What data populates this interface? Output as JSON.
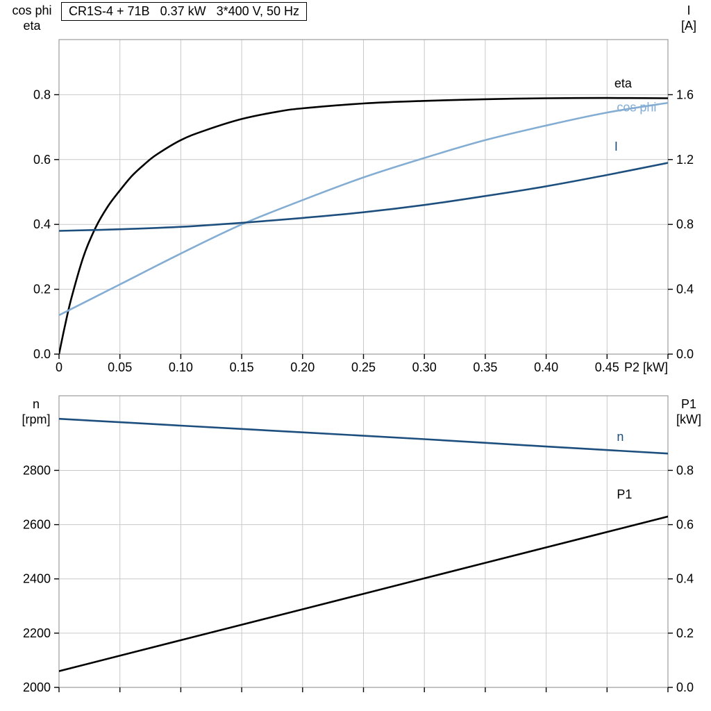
{
  "header": {
    "title": "CR1S-4 + 71B   0.37 kW   3*400 V, 50 Hz"
  },
  "colors": {
    "black": "#000000",
    "dark_blue": "#1d4f7e",
    "light_blue": "#84add3",
    "grid": "#c9c9c9",
    "frame": "#9b9b9b",
    "tick": "#000000",
    "text": "#000000"
  },
  "chart_data": [
    {
      "id": "top",
      "type": "line",
      "x_label": "P2 [kW]",
      "x_range": [
        0,
        0.5
      ],
      "x_tick_values": [
        0,
        0.05,
        0.1,
        0.15,
        0.2,
        0.25,
        0.3,
        0.35,
        0.4,
        0.45
      ],
      "x_tick_labels": [
        "0",
        "0.05",
        "0.10",
        "0.15",
        "0.20",
        "0.25",
        "0.30",
        "0.35",
        "0.40",
        "0.45"
      ],
      "y_left": {
        "title": [
          "cos phi",
          "eta"
        ],
        "range": [
          0,
          0.97
        ],
        "ticks": [
          0.0,
          0.2,
          0.4,
          0.6,
          0.8
        ],
        "tick_labels": [
          "0.0",
          "0.2",
          "0.4",
          "0.6",
          "0.8"
        ]
      },
      "y_right": {
        "title": [
          "I",
          "[A]"
        ],
        "range": [
          0,
          1.94
        ],
        "ticks": [
          0.0,
          0.4,
          0.8,
          1.2,
          1.6
        ],
        "tick_labels": [
          "0.0",
          "0.4",
          "0.8",
          "1.2",
          "1.6"
        ]
      },
      "series": [
        {
          "name": "eta",
          "axis": "left",
          "color": "black",
          "x": [
            0,
            0.005,
            0.01,
            0.02,
            0.03,
            0.04,
            0.05,
            0.06,
            0.07,
            0.08,
            0.1,
            0.12,
            0.15,
            0.18,
            0.2,
            0.25,
            0.3,
            0.35,
            0.4,
            0.45,
            0.5
          ],
          "y": [
            0,
            0.09,
            0.17,
            0.3,
            0.39,
            0.455,
            0.505,
            0.55,
            0.585,
            0.615,
            0.66,
            0.69,
            0.725,
            0.748,
            0.758,
            0.773,
            0.781,
            0.786,
            0.789,
            0.79,
            0.789
          ]
        },
        {
          "name": "cos phi",
          "axis": "left",
          "color": "light_blue",
          "x": [
            0,
            0.05,
            0.1,
            0.15,
            0.2,
            0.25,
            0.3,
            0.35,
            0.4,
            0.45,
            0.5
          ],
          "y": [
            0.12,
            0.215,
            0.31,
            0.4,
            0.475,
            0.545,
            0.605,
            0.66,
            0.705,
            0.745,
            0.775
          ]
        },
        {
          "name": "I",
          "axis": "right",
          "color": "dark_blue",
          "x": [
            0,
            0.05,
            0.1,
            0.15,
            0.2,
            0.25,
            0.3,
            0.35,
            0.4,
            0.45,
            0.5
          ],
          "y": [
            0.76,
            0.77,
            0.785,
            0.81,
            0.84,
            0.875,
            0.92,
            0.975,
            1.035,
            1.105,
            1.18
          ]
        }
      ],
      "annotations": [
        {
          "text": "eta",
          "x": 0.456,
          "y": 0.822,
          "axis": "left",
          "color": "black"
        },
        {
          "text": "cos phi",
          "x": 0.458,
          "y": 0.748,
          "axis": "left",
          "color": "light_blue"
        },
        {
          "text": "I",
          "x": 0.456,
          "y": 0.627,
          "axis": "left",
          "color": "dark_blue"
        }
      ]
    },
    {
      "id": "bottom",
      "type": "line",
      "x_label": "",
      "x_range": [
        0,
        0.5
      ],
      "x_tick_values": [
        0,
        0.05,
        0.1,
        0.15,
        0.2,
        0.25,
        0.3,
        0.35,
        0.4,
        0.45
      ],
      "x_tick_labels": [],
      "y_left": {
        "title": [
          "n",
          "[rpm]"
        ],
        "range": [
          2000,
          3075
        ],
        "ticks": [
          2000,
          2200,
          2400,
          2600,
          2800
        ],
        "tick_labels": [
          "2000",
          "2200",
          "2400",
          "2600",
          "2800"
        ]
      },
      "y_right": {
        "title": [
          "P1",
          "[kW]"
        ],
        "range": [
          0,
          1.075
        ],
        "ticks": [
          0.0,
          0.2,
          0.4,
          0.6,
          0.8
        ],
        "tick_labels": [
          "0.0",
          "0.2",
          "0.4",
          "0.6",
          "0.8"
        ]
      },
      "series": [
        {
          "name": "n",
          "axis": "left",
          "color": "dark_blue",
          "x": [
            0,
            0.1,
            0.2,
            0.3,
            0.4,
            0.5
          ],
          "y": [
            2990,
            2965,
            2940,
            2915,
            2888,
            2862
          ]
        },
        {
          "name": "P1",
          "axis": "right",
          "color": "black",
          "x": [
            0,
            0.1,
            0.2,
            0.3,
            0.4,
            0.5
          ],
          "y": [
            0.06,
            0.174,
            0.288,
            0.402,
            0.516,
            0.63
          ]
        }
      ],
      "annotations": [
        {
          "text": "n",
          "x": 0.458,
          "y": 2908,
          "axis": "left",
          "color": "dark_blue"
        },
        {
          "text": "P1",
          "x": 0.458,
          "y": 2696,
          "axis": "left",
          "color": "black"
        }
      ]
    }
  ]
}
